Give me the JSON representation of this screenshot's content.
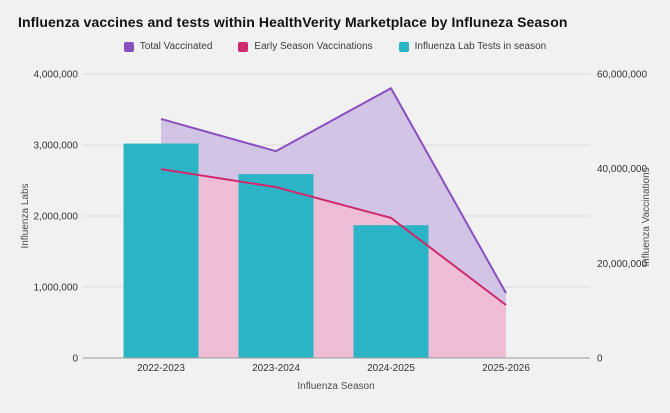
{
  "page": {
    "background": "#f1f1f1"
  },
  "chart_data": {
    "type": "combo",
    "title": "Influenza vaccines and tests within HealthVerity Marketplace by Influneza Season",
    "categories": [
      "2022-2023",
      "2023-2024",
      "2024-2025",
      "2025-2026"
    ],
    "series": [
      {
        "name": "Total Vaccinated",
        "type": "area-line",
        "axis": "right",
        "color": "#8a4fc0",
        "fill": "#d2c4e4",
        "values": [
          50500000,
          43700000,
          57000000,
          13700000
        ]
      },
      {
        "name": "Early Season Vaccinations",
        "type": "area-line",
        "axis": "right",
        "color": "#cf2a6e",
        "fill": "#efbdd5",
        "values": [
          39900000,
          36100000,
          29600000,
          11200000
        ]
      },
      {
        "name": "Influenza Lab Tests in season",
        "type": "bar",
        "axis": "left",
        "color": "#2bb4c5",
        "fill": "#2bb4c5",
        "values": [
          3020000,
          2590000,
          1870000,
          null
        ]
      }
    ],
    "x_axis": {
      "title": "Influenza Season"
    },
    "left_axis": {
      "title": "Influenza Labs",
      "min": 0,
      "max": 4000000,
      "tick_labels": [
        "0",
        "1,000,000",
        "2,000,000",
        "3,000,000",
        "4,000,000"
      ]
    },
    "right_axis": {
      "title": "Influenza Vaccinations",
      "min": 0,
      "max": 60000000,
      "tick_labels": [
        "0",
        "20,000,000",
        "40,000,000",
        "60,000,000"
      ]
    },
    "legend_position": "top",
    "grid": true,
    "colors": {
      "grid_line": "#dcdcdc",
      "axis_line": "#9c9c9c",
      "tick_text": "#333333",
      "axis_title_text": "#4d4d4d"
    }
  }
}
